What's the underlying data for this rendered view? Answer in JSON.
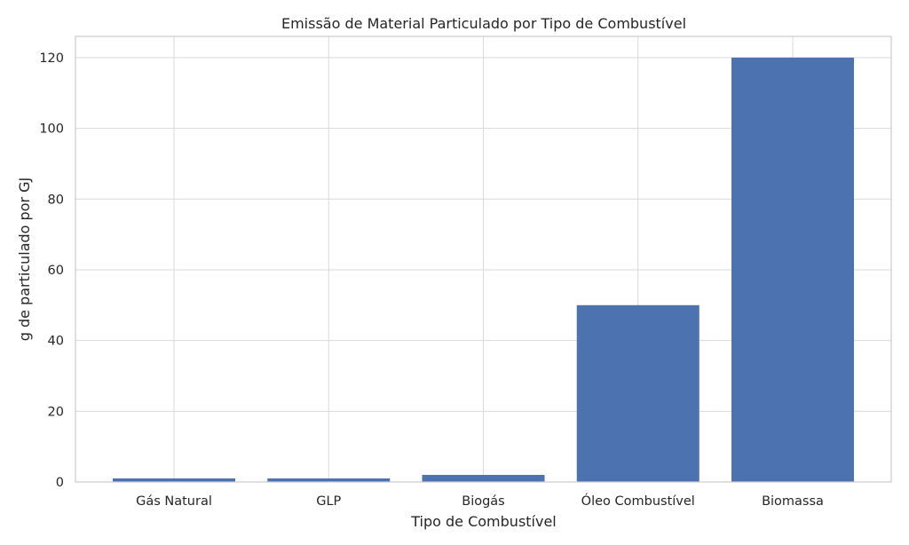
{
  "chart_data": {
    "type": "bar",
    "title": "Emissão de Material Particulado por Tipo de Combustível",
    "xlabel": "Tipo de Combustível",
    "ylabel": "g de particulado por GJ",
    "categories": [
      "Gás Natural",
      "GLP",
      "Biogás",
      "Óleo Combustível",
      "Biomassa"
    ],
    "values": [
      1,
      1,
      2,
      50,
      120
    ],
    "ylim": [
      0,
      126
    ],
    "yticks": [
      0,
      20,
      40,
      60,
      80,
      100,
      120
    ],
    "grid": true,
    "bar_color": "#4c72b0"
  }
}
